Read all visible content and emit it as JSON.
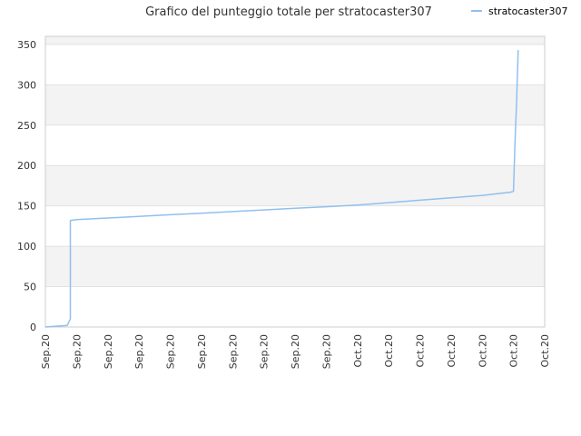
{
  "chart_data": {
    "type": "line",
    "title": "Grafico del punteggio totale per stratocaster307",
    "xlabel": "",
    "ylabel": "",
    "ylim": [
      0,
      360
    ],
    "yticks": [
      0,
      50,
      100,
      150,
      200,
      250,
      300,
      350
    ],
    "xtick_labels": [
      "Sep.20",
      "Sep.20",
      "Sep.20",
      "Sep.20",
      "Sep.20",
      "Sep.20",
      "Sep.20",
      "Sep.20",
      "Sep.20",
      "Sep.20",
      "Oct.20",
      "Oct.20",
      "Oct.20",
      "Oct.20",
      "Oct.20",
      "Oct.20",
      "Oct.20"
    ],
    "grid": "horizontal bands",
    "legend_position": "top-right",
    "colors": {
      "series": "#90c0ee",
      "band": "#f3f3f3",
      "grid": "#e2e2e2",
      "axis": "#cccccc"
    },
    "series": [
      {
        "name": "stratocaster307",
        "x": [
          0,
          0.7,
          0.75,
          0.8,
          0.8,
          1.0,
          1.5,
          2.0,
          3.0,
          4.0,
          5.0,
          6.0,
          7.0,
          8.0,
          9.0,
          10.0,
          11.0,
          12.0,
          13.0,
          14.0,
          14.9,
          15.0,
          15.05,
          15.1,
          15.15
        ],
        "y": [
          0,
          2,
          6,
          10,
          132,
          133,
          134,
          135,
          137,
          139,
          141,
          143,
          145,
          147,
          149,
          151,
          154,
          157,
          160,
          163,
          167,
          168,
          228,
          280,
          343
        ]
      }
    ]
  }
}
